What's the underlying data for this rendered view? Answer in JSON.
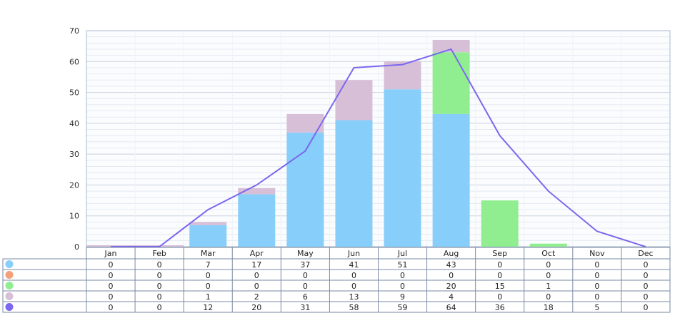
{
  "chart_data": {
    "type": "bar",
    "categories": [
      "Jan",
      "Feb",
      "Mar",
      "Apr",
      "May",
      "Jun",
      "Jul",
      "Aug",
      "Sep",
      "Oct",
      "Nov",
      "Dec"
    ],
    "ylim": [
      0,
      70
    ],
    "yticks": [
      0,
      10,
      20,
      30,
      40,
      50,
      60,
      70
    ],
    "grid": true,
    "legend": "table-left",
    "series": [
      {
        "color": "#87cefa",
        "kind": "bar",
        "values": [
          0,
          0,
          7,
          17,
          37,
          41,
          51,
          43,
          0,
          0,
          0,
          0
        ]
      },
      {
        "color": "#f4a07a",
        "kind": "bar",
        "values": [
          0,
          0,
          0,
          0,
          0,
          0,
          0,
          0,
          0,
          0,
          0,
          0
        ]
      },
      {
        "color": "#90ee90",
        "kind": "bar",
        "values": [
          0,
          0,
          0,
          0,
          0,
          0,
          0,
          20,
          15,
          1,
          0,
          0
        ]
      },
      {
        "color": "#d8bfd8",
        "kind": "bar",
        "values": [
          0,
          0,
          1,
          2,
          6,
          13,
          9,
          4,
          0,
          0,
          0,
          0
        ]
      },
      {
        "color": "#7b68ee",
        "kind": "line",
        "values": [
          0,
          0,
          12,
          20,
          31,
          58,
          59,
          64,
          36,
          18,
          5,
          0
        ]
      }
    ]
  }
}
